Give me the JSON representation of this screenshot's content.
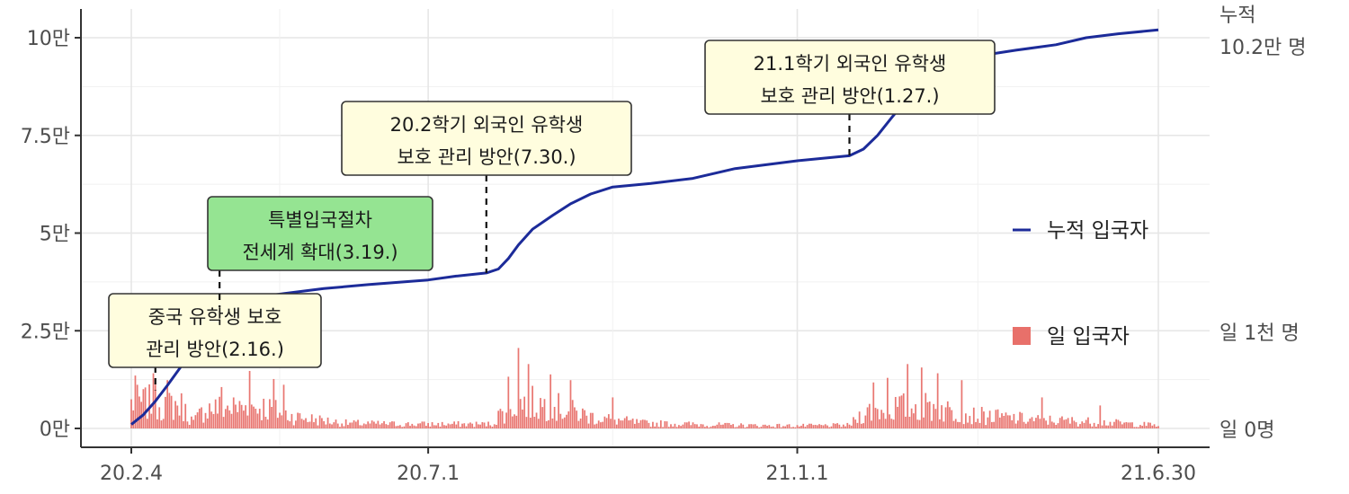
{
  "chart_data": {
    "type": "bar+line",
    "title": "",
    "xlabel": "",
    "ylabel": "",
    "x_ticks": [
      {
        "label": "20.2.4",
        "date": "2020-02-04"
      },
      {
        "label": "20.7.1",
        "date": "2020-07-01"
      },
      {
        "label": "21.1.1",
        "date": "2021-01-01"
      },
      {
        "label": "21.6.30",
        "date": "2021-06-30"
      }
    ],
    "x_range": [
      "2020-02-04",
      "2021-06-30"
    ],
    "y_left": {
      "range": [
        0,
        102000
      ],
      "ticks": [
        {
          "label": "0만",
          "value": 0
        },
        {
          "label": "2.5만",
          "value": 25000
        },
        {
          "label": "5만",
          "value": 50000
        },
        {
          "label": "7.5만",
          "value": 75000
        },
        {
          "label": "10만",
          "value": 100000
        }
      ]
    },
    "right_labels": {
      "cum_top": "누적",
      "cum_value": "10.2만 명",
      "daily_top": "일 1천 명",
      "daily_zero": "일 0명"
    },
    "daily_scale": {
      "max_value": 1000
    },
    "grid": true,
    "legend": {
      "position": "right",
      "items": [
        {
          "name": "누적 입국자",
          "kind": "line",
          "color": "#1c2b99"
        },
        {
          "name": "일 입국자",
          "kind": "bar",
          "color": "#e8706a"
        }
      ]
    },
    "series": [
      {
        "name": "누적 입국자",
        "type": "line",
        "color": "#1c2b99",
        "points": [
          [
            "2020-02-04",
            1000
          ],
          [
            "2020-02-10",
            3500
          ],
          [
            "2020-02-16",
            7000
          ],
          [
            "2020-02-22",
            11000
          ],
          [
            "2020-02-29",
            16000
          ],
          [
            "2020-03-07",
            21000
          ],
          [
            "2020-03-13",
            26500
          ],
          [
            "2020-03-19",
            31000
          ],
          [
            "2020-03-26",
            32500
          ],
          [
            "2020-04-05",
            33500
          ],
          [
            "2020-04-20",
            34500
          ],
          [
            "2020-05-10",
            35800
          ],
          [
            "2020-06-01",
            36800
          ],
          [
            "2020-07-01",
            38000
          ],
          [
            "2020-07-15",
            39000
          ],
          [
            "2020-07-30",
            39800
          ],
          [
            "2020-08-05",
            40800
          ],
          [
            "2020-08-10",
            43500
          ],
          [
            "2020-08-15",
            47000
          ],
          [
            "2020-08-22",
            51000
          ],
          [
            "2020-09-01",
            54500
          ],
          [
            "2020-09-10",
            57500
          ],
          [
            "2020-09-20",
            60000
          ],
          [
            "2020-10-01",
            61800
          ],
          [
            "2020-10-20",
            62700
          ],
          [
            "2020-11-10",
            64000
          ],
          [
            "2020-12-01",
            66500
          ],
          [
            "2021-01-01",
            68500
          ],
          [
            "2021-01-27",
            69800
          ],
          [
            "2021-02-03",
            71500
          ],
          [
            "2021-02-10",
            75000
          ],
          [
            "2021-02-17",
            79500
          ],
          [
            "2021-02-25",
            84500
          ],
          [
            "2021-03-05",
            89000
          ],
          [
            "2021-03-15",
            93000
          ],
          [
            "2021-04-01",
            95300
          ],
          [
            "2021-04-20",
            96800
          ],
          [
            "2021-05-10",
            98200
          ],
          [
            "2021-05-25",
            100000
          ],
          [
            "2021-06-10",
            101000
          ],
          [
            "2021-06-30",
            102000
          ]
        ]
      },
      {
        "name": "일 입국자",
        "type": "bar",
        "color": "#e8706a",
        "profile": [
          [
            "2020-02-04",
            240
          ],
          [
            "2020-02-20",
            240
          ],
          [
            "2020-02-29",
            210
          ],
          [
            "2020-03-06",
            60
          ],
          [
            "2020-03-12",
            190
          ],
          [
            "2020-04-10",
            200
          ],
          [
            "2020-04-25",
            110
          ],
          [
            "2020-05-20",
            50
          ],
          [
            "2020-06-20",
            40
          ],
          [
            "2020-07-25",
            40
          ],
          [
            "2020-08-02",
            40
          ],
          [
            "2020-08-05",
            120
          ],
          [
            "2020-08-15",
            250
          ],
          [
            "2020-09-01",
            210
          ],
          [
            "2020-09-20",
            110
          ],
          [
            "2020-10-15",
            50
          ],
          [
            "2020-12-01",
            30
          ],
          [
            "2021-01-01",
            25
          ],
          [
            "2021-01-27",
            30
          ],
          [
            "2021-02-03",
            150
          ],
          [
            "2021-02-20",
            200
          ],
          [
            "2021-03-10",
            200
          ],
          [
            "2021-03-25",
            130
          ],
          [
            "2021-04-30",
            80
          ],
          [
            "2021-05-31",
            60
          ],
          [
            "2021-06-30",
            30
          ]
        ],
        "peaks": [
          [
            "2020-02-06",
            460
          ],
          [
            "2020-02-15",
            480
          ],
          [
            "2020-02-22",
            420
          ],
          [
            "2020-03-20",
            360
          ],
          [
            "2020-04-03",
            500
          ],
          [
            "2020-04-15",
            430
          ],
          [
            "2020-04-20",
            380
          ],
          [
            "2020-08-10",
            450
          ],
          [
            "2020-08-15",
            700
          ],
          [
            "2020-08-20",
            560
          ],
          [
            "2020-08-31",
            470
          ],
          [
            "2020-09-10",
            420
          ],
          [
            "2020-10-01",
            270
          ],
          [
            "2021-02-08",
            400
          ],
          [
            "2021-02-15",
            440
          ],
          [
            "2021-02-25",
            560
          ],
          [
            "2021-03-04",
            530
          ],
          [
            "2021-03-12",
            480
          ],
          [
            "2021-03-24",
            420
          ],
          [
            "2021-05-03",
            270
          ],
          [
            "2021-06-01",
            200
          ]
        ]
      }
    ],
    "annotations": [
      {
        "lines": [
          "중국 유학생 보호",
          "관리 방안(2.16.)"
        ],
        "date": "2020-02-16",
        "fill": "#fffdde"
      },
      {
        "lines": [
          "특별입국절차",
          "전세계 확대(3.19.)"
        ],
        "date": "2020-03-19",
        "fill": "#95e492"
      },
      {
        "lines": [
          "20.2학기 외국인 유학생",
          "보호 관리 방안(7.30.)"
        ],
        "date": "2020-07-30",
        "fill": "#fffdde"
      },
      {
        "lines": [
          "21.1학기 외국인 유학생",
          "보호 관리 방안(1.27.)"
        ],
        "date": "2021-01-27",
        "fill": "#fffdde"
      }
    ]
  }
}
